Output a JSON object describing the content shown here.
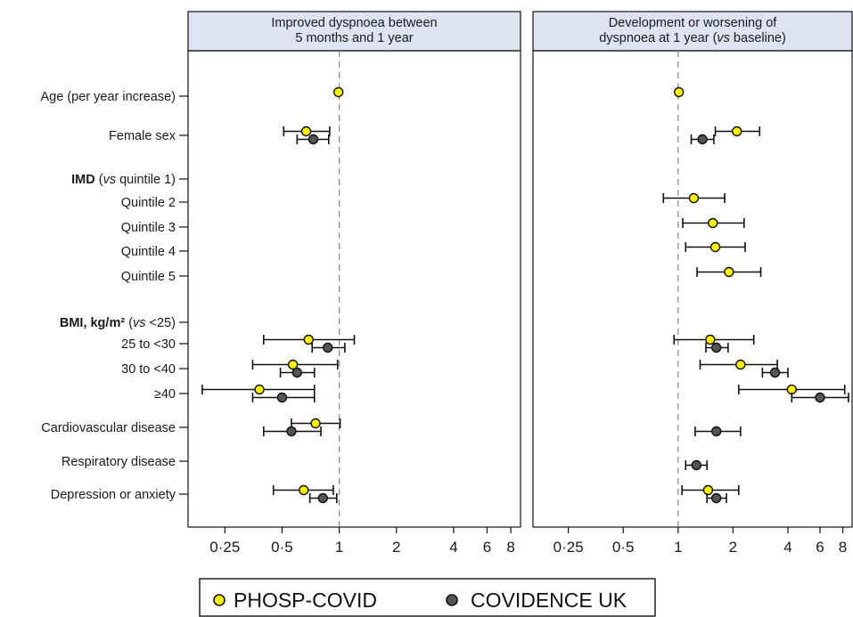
{
  "colors": {
    "phosp": "#fff200",
    "covidence": "#555555",
    "strip": "#dee3f1",
    "refline": "#888888",
    "frame": "#111111"
  },
  "chart_data": {
    "type": "forest",
    "x_scale": "log2",
    "xlim": [
      0.16,
      9
    ],
    "reference_line": 1,
    "x_ticks": [
      {
        "value": 0.25,
        "label": "0·25"
      },
      {
        "value": 0.5,
        "label": "0·5"
      },
      {
        "value": 1,
        "label": "1"
      },
      {
        "value": 2,
        "label": "2"
      },
      {
        "value": 4,
        "label": "4"
      },
      {
        "value": 6,
        "label": "6"
      },
      {
        "value": 8,
        "label": "8"
      }
    ],
    "row_labels": [
      {
        "id": "age",
        "label": "Age (per year increase)"
      },
      {
        "id": "female",
        "label": "Female sex"
      },
      {
        "id": "imd_header",
        "label_bold": "IMD",
        "label_plain_open": " (",
        "label_italic": "vs",
        "label_plain_close": " quintile 1)"
      },
      {
        "id": "q2",
        "label": "Quintile 2"
      },
      {
        "id": "q3",
        "label": "Quintile 3"
      },
      {
        "id": "q4",
        "label": "Quintile 4"
      },
      {
        "id": "q5",
        "label": "Quintile 5"
      },
      {
        "id": "bmi_header",
        "label_bold": "BMI, kg/m²",
        "label_plain_open": " (",
        "label_italic": "vs",
        "label_plain_close": " <25)"
      },
      {
        "id": "bmi1",
        "label": "25 to <30"
      },
      {
        "id": "bmi2",
        "label": "30 to <40"
      },
      {
        "id": "bmi3",
        "label": "≥40"
      },
      {
        "id": "cvd",
        "label": "Cardiovascular disease"
      },
      {
        "id": "resp",
        "label": "Respiratory disease"
      },
      {
        "id": "dep",
        "label": "Depression or anxiety"
      }
    ],
    "panels": [
      {
        "title_line1": "Improved dyspnoea between",
        "title_line2": "5 months and 1 year",
        "estimates": [
          {
            "row": "age",
            "series": "PHOSP-COVID",
            "est": 0.99,
            "lo": 0.985,
            "hi": 0.995
          },
          {
            "row": "female",
            "series": "PHOSP-COVID",
            "est": 0.67,
            "lo": 0.51,
            "hi": 0.89
          },
          {
            "row": "female",
            "series": "COVIDENCE UK",
            "est": 0.73,
            "lo": 0.6,
            "hi": 0.88
          },
          {
            "row": "bmi1",
            "series": "PHOSP-COVID",
            "est": 0.69,
            "lo": 0.4,
            "hi": 1.2
          },
          {
            "row": "bmi1",
            "series": "COVIDENCE UK",
            "est": 0.87,
            "lo": 0.72,
            "hi": 1.07
          },
          {
            "row": "bmi2",
            "series": "PHOSP-COVID",
            "est": 0.57,
            "lo": 0.35,
            "hi": 0.98
          },
          {
            "row": "bmi2",
            "series": "COVIDENCE UK",
            "est": 0.6,
            "lo": 0.49,
            "hi": 0.74
          },
          {
            "row": "bmi3",
            "series": "PHOSP-COVID",
            "est": 0.38,
            "lo": 0.19,
            "hi": 0.74
          },
          {
            "row": "bmi3",
            "series": "COVIDENCE UK",
            "est": 0.5,
            "lo": 0.35,
            "hi": 0.74
          },
          {
            "row": "cvd",
            "series": "PHOSP-COVID",
            "est": 0.75,
            "lo": 0.56,
            "hi": 1.01
          },
          {
            "row": "cvd",
            "series": "COVIDENCE UK",
            "est": 0.56,
            "lo": 0.4,
            "hi": 0.8
          },
          {
            "row": "dep",
            "series": "PHOSP-COVID",
            "est": 0.65,
            "lo": 0.45,
            "hi": 0.93
          },
          {
            "row": "dep",
            "series": "COVIDENCE UK",
            "est": 0.82,
            "lo": 0.7,
            "hi": 0.97
          }
        ]
      },
      {
        "title_line1": "Development or worsening of",
        "title_line2_plain_open": "dyspnoea at 1 year (",
        "title_line2_italic": "vs",
        "title_line2_plain_close": " baseline)",
        "estimates": [
          {
            "row": "age",
            "series": "PHOSP-COVID",
            "est": 1.01,
            "lo": 1.0,
            "hi": 1.02
          },
          {
            "row": "female",
            "series": "PHOSP-COVID",
            "est": 2.1,
            "lo": 1.6,
            "hi": 2.8
          },
          {
            "row": "female",
            "series": "COVIDENCE UK",
            "est": 1.36,
            "lo": 1.18,
            "hi": 1.57
          },
          {
            "row": "q2",
            "series": "PHOSP-COVID",
            "est": 1.22,
            "lo": 0.83,
            "hi": 1.8
          },
          {
            "row": "q3",
            "series": "PHOSP-COVID",
            "est": 1.55,
            "lo": 1.06,
            "hi": 2.3
          },
          {
            "row": "q4",
            "series": "PHOSP-COVID",
            "est": 1.6,
            "lo": 1.1,
            "hi": 2.33
          },
          {
            "row": "q5",
            "series": "PHOSP-COVID",
            "est": 1.9,
            "lo": 1.27,
            "hi": 2.84
          },
          {
            "row": "bmi1",
            "series": "PHOSP-COVID",
            "est": 1.5,
            "lo": 0.95,
            "hi": 2.6
          },
          {
            "row": "bmi1",
            "series": "COVIDENCE UK",
            "est": 1.62,
            "lo": 1.42,
            "hi": 1.88
          },
          {
            "row": "bmi2",
            "series": "PHOSP-COVID",
            "est": 2.2,
            "lo": 1.32,
            "hi": 3.5
          },
          {
            "row": "bmi2",
            "series": "COVIDENCE UK",
            "est": 3.4,
            "lo": 2.9,
            "hi": 4.0
          },
          {
            "row": "bmi3",
            "series": "PHOSP-COVID",
            "est": 4.2,
            "lo": 2.15,
            "hi": 8.2
          },
          {
            "row": "bmi3",
            "series": "COVIDENCE UK",
            "est": 6.0,
            "lo": 4.2,
            "hi": 8.6
          },
          {
            "row": "cvd",
            "series": "COVIDENCE UK",
            "est": 1.62,
            "lo": 1.24,
            "hi": 2.2
          },
          {
            "row": "resp",
            "series": "COVIDENCE UK",
            "est": 1.26,
            "lo": 1.1,
            "hi": 1.44
          },
          {
            "row": "dep",
            "series": "PHOSP-COVID",
            "est": 1.46,
            "lo": 1.05,
            "hi": 2.15
          },
          {
            "row": "dep",
            "series": "COVIDENCE UK",
            "est": 1.62,
            "lo": 1.44,
            "hi": 1.84
          }
        ]
      }
    ],
    "legend": {
      "position": "bottom",
      "items": [
        {
          "name": "PHOSP-COVID",
          "color": "#fff200"
        },
        {
          "name": "COVIDENCE UK",
          "color": "#555555"
        }
      ]
    }
  }
}
